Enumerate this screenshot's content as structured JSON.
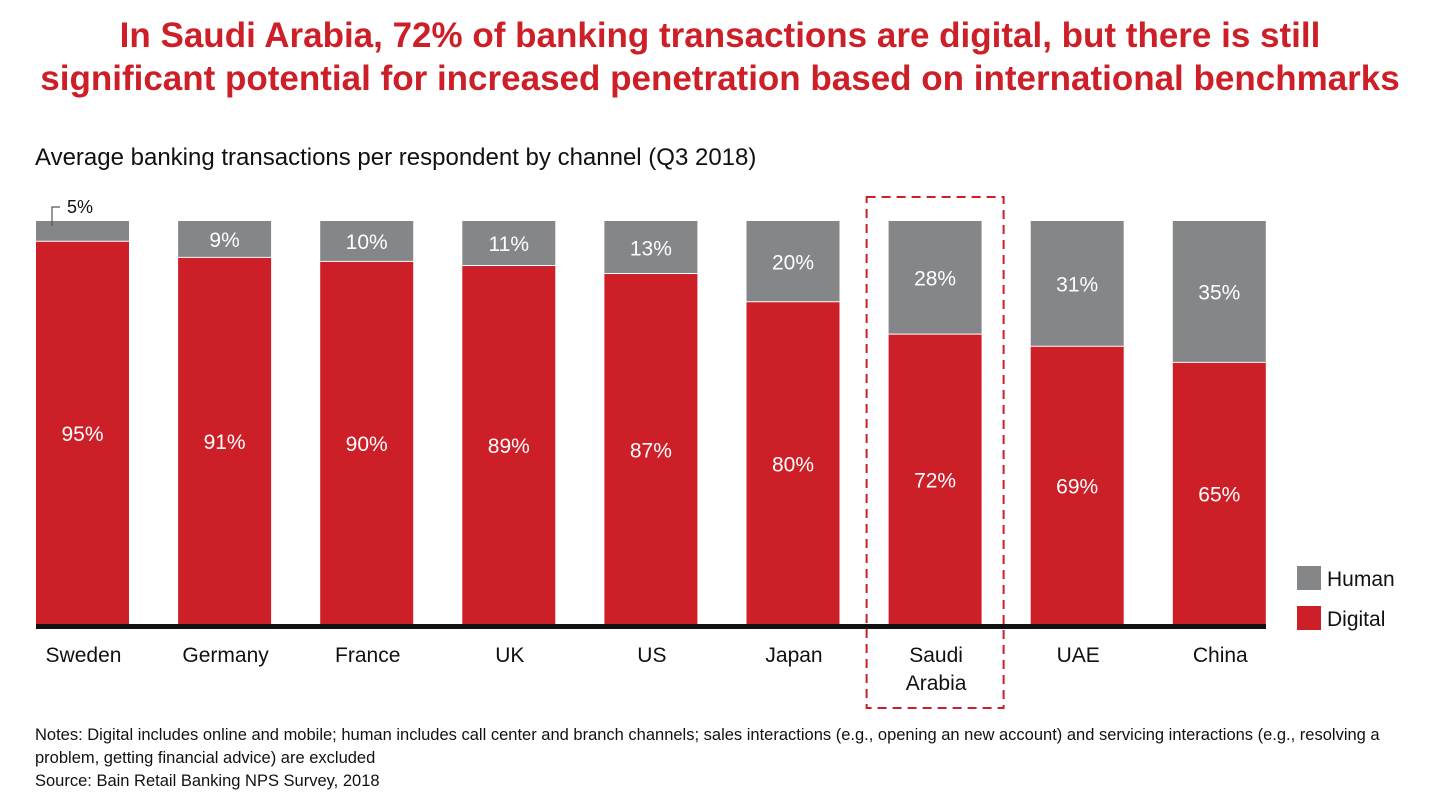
{
  "headline": {
    "line1": "In Saudi Arabia, 72% of banking transactions are digital, but there is still",
    "line2": "significant potential for increased penetration based on international benchmarks"
  },
  "chart_data": {
    "type": "bar",
    "stacked": true,
    "title": "Average banking transactions per respondent by channel (Q3 2018)",
    "categories": [
      "Sweden",
      "Germany",
      "France",
      "UK",
      "US",
      "Japan",
      "Saudi Arabia",
      "UAE",
      "China"
    ],
    "series": [
      {
        "name": "Digital",
        "color": "#cc1f27",
        "values": [
          95,
          91,
          90,
          89,
          87,
          80,
          72,
          69,
          65
        ]
      },
      {
        "name": "Human",
        "color": "#848688",
        "values": [
          5,
          9,
          10,
          11,
          13,
          20,
          28,
          31,
          35
        ]
      }
    ],
    "value_suffix": "%",
    "ylim": [
      0,
      100
    ],
    "highlight_category": "Saudi Arabia",
    "legend_placement": "bottom-right",
    "grid": false
  },
  "notes": {
    "line1": "Notes: Digital includes online and mobile; human includes call center and branch channels; sales interactions (e.g., opening an new account) and servicing interactions (e.g., resolving a problem, getting financial advice) are excluded",
    "source": "Source: Bain Retail Banking NPS Survey, 2018"
  }
}
